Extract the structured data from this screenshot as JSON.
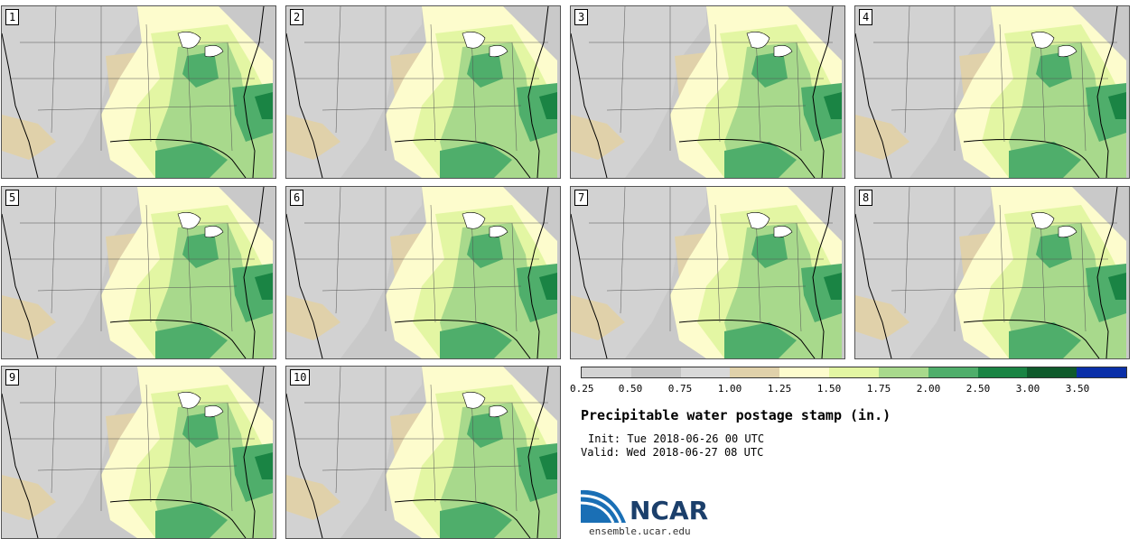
{
  "panels": [
    "1",
    "2",
    "3",
    "4",
    "5",
    "6",
    "7",
    "8",
    "9",
    "10"
  ],
  "colorbar": {
    "colors": [
      "#d3d3d3",
      "#c4c4c4",
      "#d9d9d9",
      "#e0d1aa",
      "#fdfccd",
      "#e3f6a3",
      "#a8d98c",
      "#4fae6b",
      "#1a8444",
      "#0f5a2c",
      "#0a2fa8"
    ],
    "ticks": [
      "0.25",
      "0.50",
      "0.75",
      "1.00",
      "1.25",
      "1.50",
      "1.75",
      "2.00",
      "2.50",
      "3.00",
      "3.50"
    ]
  },
  "title": "Precipitable water postage stamp (in.)",
  "init_label": "Init: Tue 2018-06-26 00 UTC",
  "valid_label": "Valid: Wed 2018-06-27 08 UTC",
  "logo_text": "NCAR",
  "url": "ensemble.ucar.edu",
  "colors": {
    "land_dry": "#c8c8c8",
    "land_dry_light": "#d8d8d8",
    "ocean": "#bdbdbd",
    "tan": "#e0d1aa",
    "cream": "#fdfccd",
    "light_green": "#e3f6a3",
    "mid_green": "#a8d98c",
    "green": "#4fae6b",
    "dark_green": "#1a8444"
  }
}
